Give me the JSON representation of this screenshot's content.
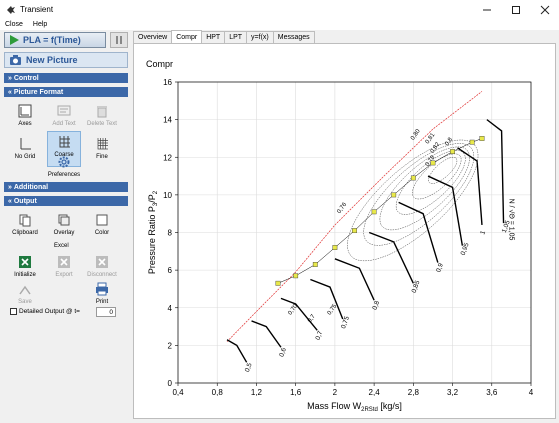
{
  "window": {
    "title": "Transient",
    "minimize_icon": "minimize-icon",
    "maximize_icon": "maximize-icon",
    "close_icon": "close-icon"
  },
  "menu": {
    "items": [
      "Close",
      "Help"
    ]
  },
  "sidebar": {
    "pla_button": "PLA = f(Time)",
    "new_picture_button": "New Picture",
    "sections": {
      "control": "Control",
      "picture_format": "Picture Format",
      "additional": "Additional",
      "output": "Output"
    },
    "picture_tools": [
      "Axes",
      "Add Text",
      "Delete Text",
      "No Grid",
      "Coarse",
      "Fine",
      "Preferences"
    ],
    "output_tools": [
      "Clipboard",
      "Overlay",
      "Color"
    ],
    "excel_label": "Excel",
    "excel_tools": [
      "Initialize",
      "Export",
      "Disconnect"
    ],
    "save_label": "Save",
    "print_label": "Print",
    "detailed_output_label": "Detailed Output @ t=",
    "detailed_output_value": "0"
  },
  "tabs": [
    "Overview",
    "Compr",
    "HPT",
    "LPT",
    "y=f(x)",
    "Messages"
  ],
  "active_tab": "Compr",
  "panel_title": "Compr",
  "colors": {
    "accent": "#3c68a8",
    "surge_line": "#e03030",
    "operating_line": "#e8e84a",
    "background": "#ffffff"
  },
  "chart_data": {
    "type": "line",
    "title": "",
    "xlabel": "Mass Flow W",
    "xlabel_sub": "2RStd",
    "xlabel_unit": "[kg/s]",
    "ylabel": "Pressure Ratio P",
    "ylabel_sub1": "3",
    "ylabel_sub2": "2",
    "xlim": [
      0.4,
      4
    ],
    "ylim": [
      0,
      16
    ],
    "xticks": [
      "0,4",
      "0,8",
      "1,2",
      "1,6",
      "2",
      "2,4",
      "2,8",
      "3,2",
      "3,6",
      "4"
    ],
    "yticks": [
      "0",
      "2",
      "4",
      "6",
      "8",
      "10",
      "12",
      "14",
      "16"
    ],
    "grid": true,
    "speed_line_labels": [
      "0,5",
      "0,6",
      "0,7",
      "0,75",
      "0,8",
      "0,85",
      "0,9",
      "0,95",
      "1",
      "1,05"
    ],
    "efficiency_labels": [
      "0,70",
      "0,7",
      "0,75",
      "0,76",
      "0,78",
      "0,8",
      "0,82",
      "0,81",
      "0,80"
    ],
    "speed_axis_label": "N / √Θ = 1,05",
    "surge_line": {
      "x": [
        0.9,
        1.2,
        1.6,
        2.0,
        2.5,
        3.0,
        3.5
      ],
      "y": [
        2.2,
        3.8,
        5.9,
        8.4,
        11.0,
        13.5,
        15.5
      ]
    },
    "speed_lines": [
      {
        "name": "0,5",
        "x": [
          0.9,
          1.0,
          1.1
        ],
        "y": [
          2.3,
          2.0,
          1.1
        ]
      },
      {
        "name": "0,6",
        "x": [
          1.15,
          1.3,
          1.45
        ],
        "y": [
          3.3,
          3.0,
          1.9
        ]
      },
      {
        "name": "0,7",
        "x": [
          1.45,
          1.6,
          1.82
        ],
        "y": [
          4.5,
          4.2,
          2.8
        ]
      },
      {
        "name": "0,75",
        "x": [
          1.75,
          1.95,
          2.08
        ],
        "y": [
          5.5,
          5.1,
          3.4
        ]
      },
      {
        "name": "0,8",
        "x": [
          2.0,
          2.25,
          2.4
        ],
        "y": [
          6.6,
          6.1,
          4.4
        ]
      },
      {
        "name": "0,85",
        "x": [
          2.35,
          2.6,
          2.8
        ],
        "y": [
          8.0,
          7.5,
          5.3
        ]
      },
      {
        "name": "0,9",
        "x": [
          2.65,
          2.9,
          3.05
        ],
        "y": [
          9.6,
          9.0,
          6.4
        ]
      },
      {
        "name": "0,95",
        "x": [
          2.95,
          3.2,
          3.3
        ],
        "y": [
          11.0,
          10.4,
          7.3
        ]
      },
      {
        "name": "1",
        "x": [
          3.25,
          3.45,
          3.5
        ],
        "y": [
          12.5,
          11.8,
          8.4
        ]
      },
      {
        "name": "1,05",
        "x": [
          3.55,
          3.7,
          3.72
        ],
        "y": [
          14.0,
          13.4,
          8.5
        ]
      }
    ],
    "operating_line": {
      "x": [
        1.42,
        1.6,
        1.8,
        2.0,
        2.2,
        2.4,
        2.6,
        2.8,
        3.0,
        3.2,
        3.4,
        3.5
      ],
      "y": [
        5.3,
        5.7,
        6.3,
        7.2,
        8.1,
        9.1,
        10.0,
        10.9,
        11.7,
        12.3,
        12.8,
        13.0
      ]
    }
  }
}
